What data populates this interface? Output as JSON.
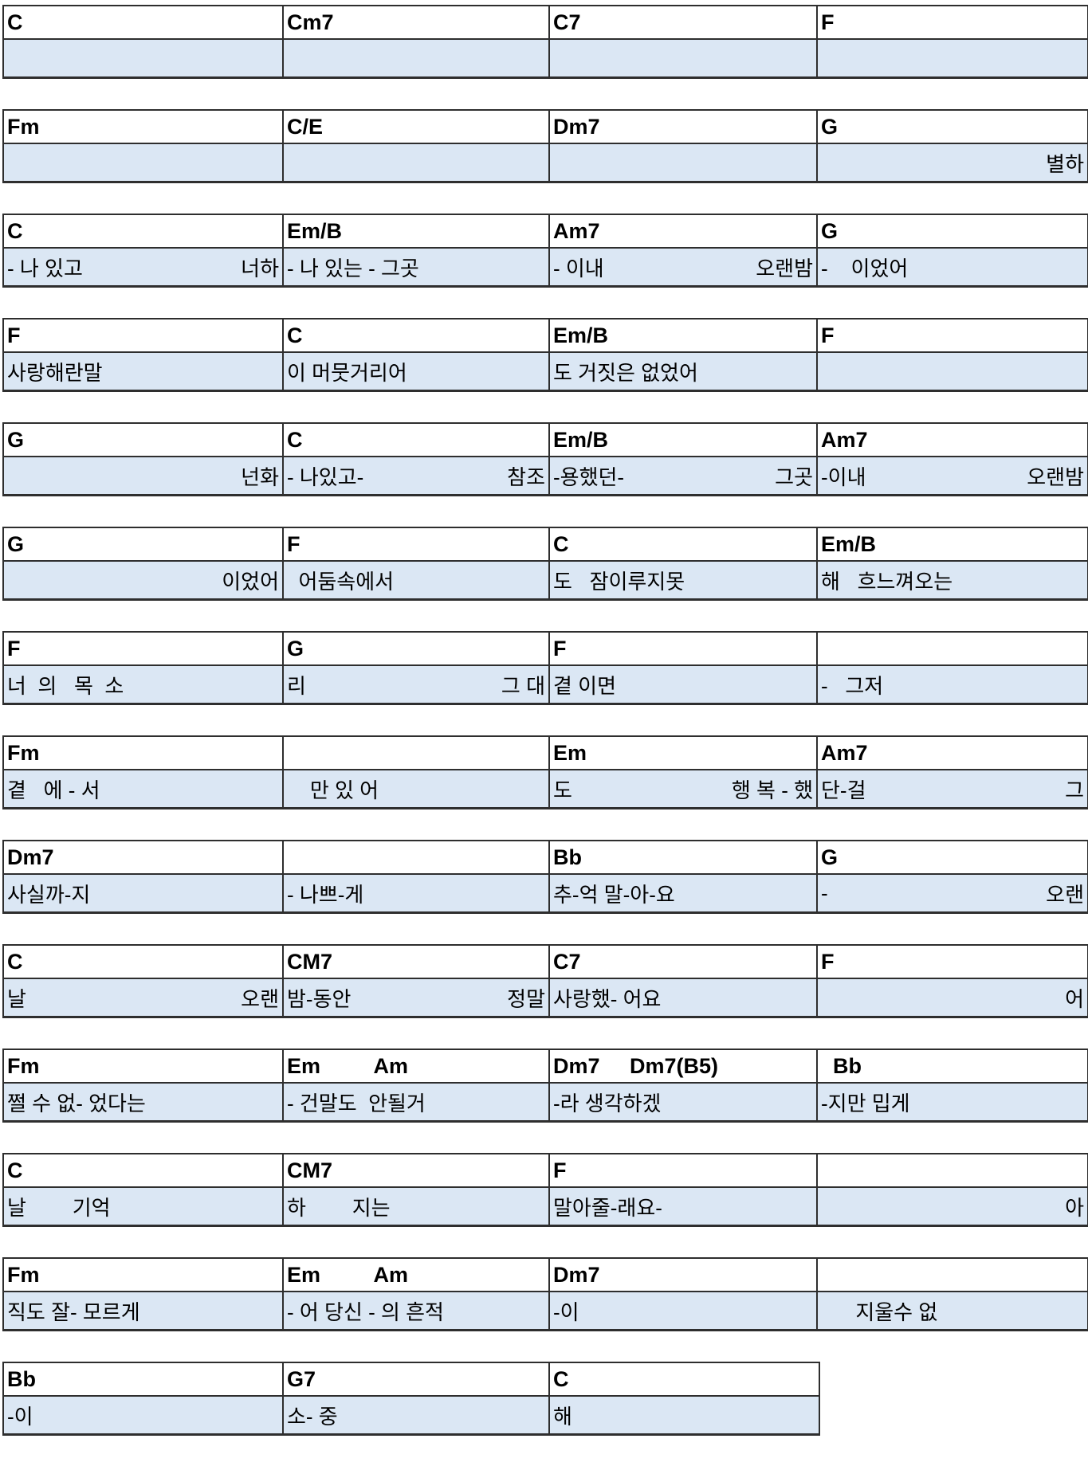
{
  "colors": {
    "lyric_bg": "#dbe7f4",
    "border": "#2e2e2e",
    "chord_text": "#000000"
  },
  "rows": [
    {
      "cols": 4,
      "cells": [
        {
          "chord": "C",
          "l": "",
          "r": ""
        },
        {
          "chord": "Cm7",
          "l": "",
          "r": ""
        },
        {
          "chord": "C7",
          "l": "",
          "r": ""
        },
        {
          "chord": "F",
          "l": "",
          "r": ""
        }
      ]
    },
    {
      "cols": 4,
      "cells": [
        {
          "chord": "Fm",
          "l": "",
          "r": ""
        },
        {
          "chord": "C/E",
          "l": "",
          "r": ""
        },
        {
          "chord": "Dm7",
          "l": "",
          "r": ""
        },
        {
          "chord": "G",
          "l": "",
          "r": "별하"
        }
      ]
    },
    {
      "cols": 4,
      "cells": [
        {
          "chord": "C",
          "l": "- 나 있고",
          "r": "너하"
        },
        {
          "chord": "Em/B",
          "l": "- 나 있는 - 그곳",
          "r": ""
        },
        {
          "chord": "Am7",
          "l": "- 이내",
          "r": "오랜밤"
        },
        {
          "chord": "G",
          "l": "-    이었어",
          "r": ""
        }
      ]
    },
    {
      "cols": 4,
      "cells": [
        {
          "chord": "F",
          "l": "사랑해란말",
          "r": ""
        },
        {
          "chord": "C",
          "l": "이 머뭇거리어",
          "r": ""
        },
        {
          "chord": "Em/B",
          "l": "도 거짓은 없었어",
          "r": ""
        },
        {
          "chord": "F",
          "l": "",
          "r": ""
        }
      ]
    },
    {
      "cols": 4,
      "cells": [
        {
          "chord": "G",
          "l": "",
          "r": "넌화"
        },
        {
          "chord": "C",
          "l": "- 나있고-",
          "r": "참조"
        },
        {
          "chord": "Em/B",
          "l": "-용했던-",
          "r": "그곳"
        },
        {
          "chord": "Am7",
          "l": "-이내",
          "r": "오랜밤"
        }
      ]
    },
    {
      "cols": 4,
      "cells": [
        {
          "chord": "G",
          "l": "",
          "r": "이었어"
        },
        {
          "chord": "F",
          "l": "  어둠속에서",
          "r": ""
        },
        {
          "chord": "C",
          "l": "도   잠이루지못",
          "r": ""
        },
        {
          "chord": "Em/B",
          "l": "해   흐느껴오는",
          "r": ""
        }
      ]
    },
    {
      "cols": 4,
      "cells": [
        {
          "chord": "F",
          "l": "너  의   목  소",
          "r": ""
        },
        {
          "chord": "G",
          "l": "리",
          "r": "그 대"
        },
        {
          "chord": "F",
          "l": "곁 이면",
          "r": ""
        },
        {
          "chord": "",
          "l": "-   그저",
          "r": ""
        }
      ]
    },
    {
      "cols": 4,
      "cells": [
        {
          "chord": "Fm",
          "l": "곁   에 - 서",
          "r": ""
        },
        {
          "chord": "",
          "l": "    만 있 어",
          "r": ""
        },
        {
          "chord": "Em",
          "l": "도",
          "r": "행 복 - 했"
        },
        {
          "chord": "Am7",
          "l": "단-걸",
          "r": "그"
        }
      ]
    },
    {
      "cols": 4,
      "cells": [
        {
          "chord": "Dm7",
          "l": "사실까-지",
          "r": ""
        },
        {
          "chord": "",
          "l": "- 나쁘-게",
          "r": ""
        },
        {
          "chord": "Bb",
          "l": "추-억 말-아-요",
          "r": ""
        },
        {
          "chord": "G",
          "l": "-",
          "r": "오랜"
        }
      ]
    },
    {
      "cols": 4,
      "cells": [
        {
          "chord": "C",
          "l": "날",
          "r": "오랜"
        },
        {
          "chord": "CM7",
          "l": "밤-동안",
          "r": "정말"
        },
        {
          "chord": "C7",
          "l": "사랑했- 어요",
          "r": ""
        },
        {
          "chord": "F",
          "l": "",
          "r": "어"
        }
      ]
    },
    {
      "cols": 4,
      "cells": [
        {
          "chord": "Fm",
          "l": "쩔 수 없- 었다는",
          "r": ""
        },
        {
          "chord": "Em         Am",
          "l": "- 건말도  안될거",
          "r": ""
        },
        {
          "chord": "Dm7     Dm7(B5)",
          "l": "-라 생각하겠",
          "r": ""
        },
        {
          "chord": "  Bb",
          "l": "-지만 밉게",
          "r": ""
        }
      ]
    },
    {
      "cols": 4,
      "cells": [
        {
          "chord": "C",
          "l": "날        기억",
          "r": ""
        },
        {
          "chord": "CM7",
          "l": "하        지는",
          "r": ""
        },
        {
          "chord": "F",
          "l": "말아줄-래요-",
          "r": ""
        },
        {
          "chord": "",
          "l": "",
          "r": "아"
        }
      ]
    },
    {
      "cols": 4,
      "cells": [
        {
          "chord": "Fm",
          "l": "직도 잘- 모르게",
          "r": ""
        },
        {
          "chord": "Em         Am",
          "l": "- 어 당신 - 의 흔적",
          "r": ""
        },
        {
          "chord": "Dm7",
          "l": "-이",
          "r": ""
        },
        {
          "chord": "",
          "l": "      지울수 없",
          "r": ""
        }
      ]
    },
    {
      "cols": 3,
      "cells": [
        {
          "chord": "Bb",
          "l": "-이",
          "r": ""
        },
        {
          "chord": "G7",
          "l": "소- 중",
          "r": ""
        },
        {
          "chord": "C",
          "l": "해",
          "r": ""
        }
      ]
    }
  ]
}
